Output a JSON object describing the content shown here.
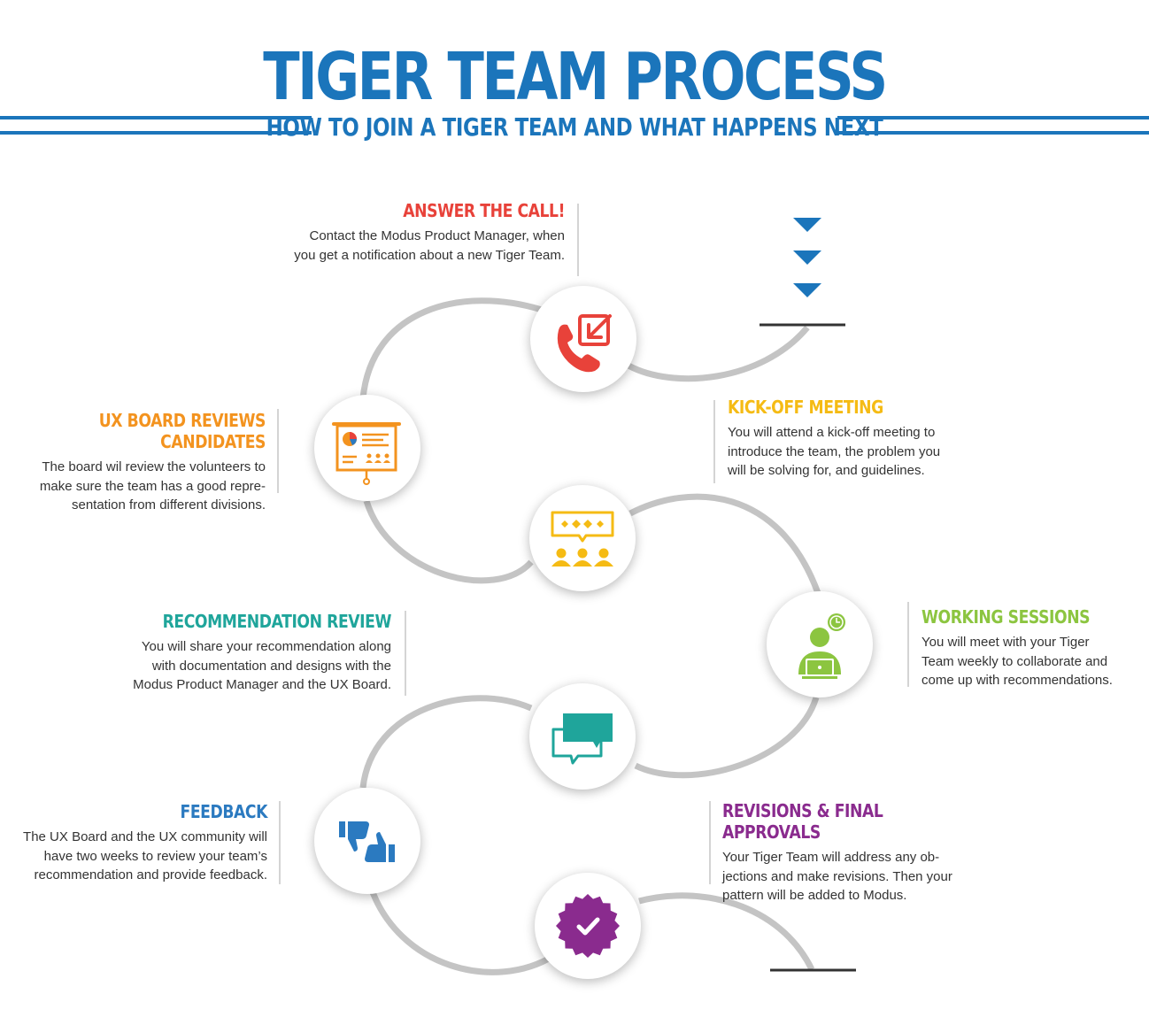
{
  "header": {
    "title": "TIGER TEAM PROCESS",
    "subtitle": "HOW TO JOIN A TIGER TEAM AND WHAT HAPPENS NEXT"
  },
  "colors": {
    "brand_blue": "#1b75bb",
    "path_gray": "#c4c4c4",
    "red": "#e8423a",
    "orange": "#f3931f",
    "yellow": "#f5bb14",
    "green": "#8cc540",
    "teal": "#1fa59b",
    "blue": "#2b7ac0",
    "purple": "#8a2b8e"
  },
  "steps": [
    {
      "title": "ANSWER THE CALL!",
      "body": [
        "Contact the Modus Product Manager, when",
        "you get a notification about a new Tiger Team."
      ],
      "icon": "phone-incoming-icon",
      "color": "#e8423a"
    },
    {
      "title": "UX BOARD REVIEWS CANDIDATES",
      "body": [
        "The board wil review the volunteers to",
        "make sure the team has a good repre-",
        "sentation from different divisions."
      ],
      "icon": "presentation-board-icon",
      "color": "#f3931f"
    },
    {
      "title": "KICK-OFF MEETING",
      "body": [
        "You will attend a kick-off meeting to",
        "introduce the team, the problem you",
        "will be solving for, and guidelines."
      ],
      "icon": "team-meeting-icon",
      "color": "#f5bb14"
    },
    {
      "title": "WORKING SESSIONS",
      "body": [
        "You will meet with your Tiger",
        "Team weekly to collaborate and",
        "come up with recommendations."
      ],
      "icon": "person-laptop-clock-icon",
      "color": "#8cc540"
    },
    {
      "title": "RECOMMENDATION REVIEW",
      "body": [
        "You will share your recommendation along",
        "with documentation and designs with the",
        "Modus Product Manager and the UX Board."
      ],
      "icon": "chat-bubbles-icon",
      "color": "#1fa59b"
    },
    {
      "title": "FEEDBACK",
      "body": [
        "The UX Board and the UX community will",
        "have two weeks to review your team’s",
        "recommendation and provide feedback."
      ],
      "icon": "thumbs-up-down-icon",
      "color": "#2b7ac0"
    },
    {
      "title": "REVISIONS & FINAL APPROVALS",
      "body": [
        "Your Tiger Team will address any ob-",
        "jections and make revisions. Then your",
        "pattern will be added to Modus."
      ],
      "icon": "approval-badge-icon",
      "color": "#8a2b8e"
    }
  ]
}
